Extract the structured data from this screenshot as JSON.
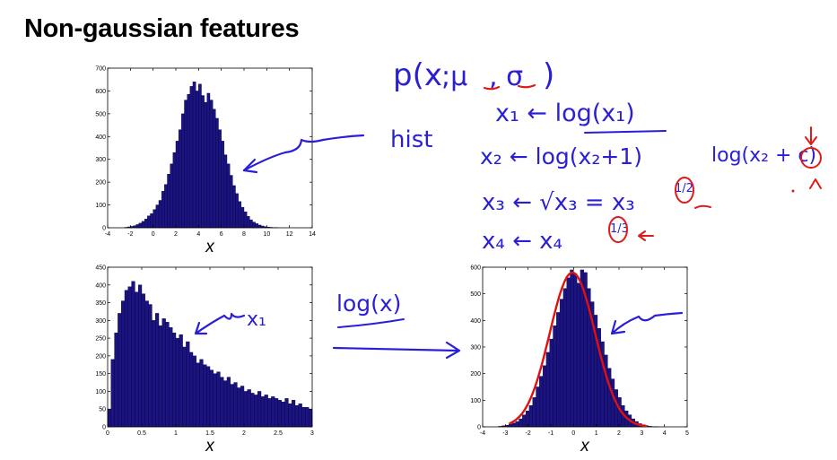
{
  "slide": {
    "title": "Non-gaussian features",
    "colors": {
      "bar_fill": "#1a1380",
      "bar_stroke": "#05033d",
      "ink_blue": "#2a1fd6",
      "ink_red": "#e01a1a",
      "fit_red": "#e01010"
    }
  },
  "annotations": {
    "formula_p": "p(x",
    "formula_p_rest": ";μ",
    "formula_sigma": ", σ",
    "formula_close": ")",
    "hist": "hist",
    "x1_assign": "x₁ ← log(x₁)",
    "x2_assign": "x₂ ← log(x₂+1)",
    "x3_assign": "x₃ ← √x₃ = x₃",
    "x3_exp": "1/2",
    "x4_assign": "x₄ ← x₄",
    "x4_exp": "1/3",
    "side_expr": "log(x₂ + c)",
    "side_c": "c",
    "x1_label": "x₁",
    "logx": "log(x)"
  },
  "chart_data": [
    {
      "type": "bar",
      "xlabel": "x",
      "xlim": [
        -4,
        14
      ],
      "ylim": [
        0,
        700
      ],
      "xticks": [
        -4,
        -2,
        0,
        2,
        4,
        6,
        8,
        10,
        12,
        14
      ],
      "yticks": [
        0,
        100,
        200,
        300,
        400,
        500,
        600,
        700
      ],
      "bin_start": -2.5,
      "bin_width": 0.25,
      "values": [
        2,
        4,
        6,
        9,
        14,
        20,
        28,
        38,
        52,
        62,
        80,
        100,
        120,
        160,
        190,
        235,
        280,
        330,
        380,
        430,
        500,
        560,
        585,
        620,
        640,
        600,
        630,
        580,
        550,
        590,
        560,
        520,
        480,
        430,
        380,
        320,
        280,
        230,
        185,
        150,
        115,
        90,
        70,
        50,
        35,
        25,
        18,
        12,
        8,
        5,
        3,
        2,
        1,
        1
      ]
    },
    {
      "type": "bar",
      "xlabel": "x",
      "xlim": [
        0,
        3
      ],
      "ylim": [
        0,
        450
      ],
      "xticks": [
        0,
        0.5,
        1,
        1.5,
        2,
        2.5,
        3
      ],
      "yticks": [
        0,
        50,
        100,
        150,
        200,
        250,
        300,
        350,
        400,
        450
      ],
      "bin_start": 0,
      "bin_width": 0.05,
      "values": [
        50,
        190,
        265,
        320,
        355,
        385,
        395,
        410,
        380,
        400,
        375,
        355,
        345,
        300,
        320,
        285,
        305,
        295,
        280,
        265,
        250,
        260,
        225,
        240,
        210,
        200,
        180,
        190,
        175,
        170,
        160,
        150,
        155,
        140,
        130,
        140,
        120,
        125,
        110,
        115,
        100,
        105,
        95,
        90,
        100,
        85,
        90,
        80,
        85,
        80,
        75,
        70,
        80,
        65,
        75,
        60,
        65,
        55,
        55,
        50
      ]
    },
    {
      "type": "bar",
      "xlabel": "x",
      "xlim": [
        -4,
        5
      ],
      "ylim": [
        0,
        600
      ],
      "xticks": [
        -4,
        -3,
        -2,
        -1,
        0,
        1,
        2,
        3,
        4,
        5
      ],
      "yticks": [
        0,
        100,
        200,
        300,
        400,
        500,
        600
      ],
      "bin_start": -3.3,
      "bin_width": 0.15,
      "values": [
        2,
        4,
        6,
        10,
        14,
        20,
        30,
        45,
        60,
        80,
        110,
        150,
        190,
        230,
        280,
        330,
        380,
        430,
        480,
        520,
        560,
        590,
        575,
        540,
        590,
        580,
        520,
        470,
        420,
        370,
        320,
        270,
        220,
        180,
        140,
        110,
        80,
        60,
        45,
        30,
        20,
        12,
        8,
        4,
        2,
        1,
        1
      ]
    }
  ]
}
